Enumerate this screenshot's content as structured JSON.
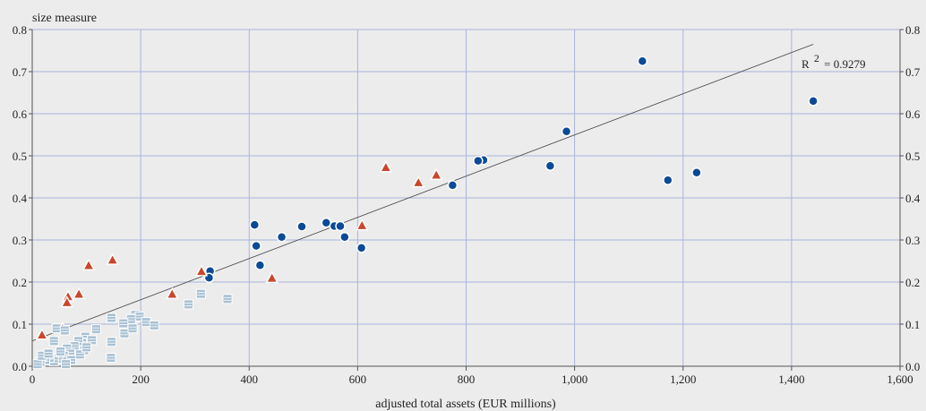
{
  "chart_data": {
    "type": "scatter",
    "title": "",
    "xlabel": "adjusted total assets (EUR millions)",
    "ylabel": "size measure",
    "xlim": [
      0,
      1600
    ],
    "ylim": [
      0,
      0.8
    ],
    "x_ticks": [
      0,
      200,
      400,
      600,
      800,
      1000,
      1200,
      1400,
      1600
    ],
    "x_tick_labels": [
      "0",
      "200",
      "400",
      "600",
      "800",
      "1,000",
      "1,200",
      "1,400",
      "1,600"
    ],
    "y_ticks": [
      0,
      0.1,
      0.2,
      0.3,
      0.4,
      0.5,
      0.6,
      0.7,
      0.8
    ],
    "y_tick_labels": [
      "0.0",
      "0.1",
      "0.2",
      "0.3",
      "0.4",
      "0.5",
      "0.6",
      "0.7",
      "0.8"
    ],
    "grid": true,
    "right_axis_mirror": true,
    "annotation": {
      "text_base": "R",
      "text_sup": "2",
      "text_value": "= 0.9279"
    },
    "trendline": {
      "x": [
        0,
        1440
      ],
      "y": [
        0.06,
        0.765
      ]
    },
    "series": [
      {
        "marker": "circle",
        "color": "#0b4a96",
        "points": [
          [
            1125,
            0.725
          ],
          [
            1440,
            0.63
          ],
          [
            985,
            0.558
          ],
          [
            832,
            0.49
          ],
          [
            822,
            0.488
          ],
          [
            955,
            0.476
          ],
          [
            1172,
            0.442
          ],
          [
            1225,
            0.46
          ],
          [
            775,
            0.43
          ],
          [
            410,
            0.336
          ],
          [
            542,
            0.341
          ],
          [
            557,
            0.333
          ],
          [
            568,
            0.333
          ],
          [
            497,
            0.332
          ],
          [
            460,
            0.307
          ],
          [
            576,
            0.307
          ],
          [
            413,
            0.286
          ],
          [
            607,
            0.281
          ],
          [
            420,
            0.24
          ],
          [
            328,
            0.226
          ],
          [
            326,
            0.21
          ]
        ]
      },
      {
        "marker": "triangle",
        "color": "#c9472b",
        "points": [
          [
            652,
            0.473
          ],
          [
            745,
            0.455
          ],
          [
            712,
            0.437
          ],
          [
            608,
            0.335
          ],
          [
            148,
            0.253
          ],
          [
            104,
            0.24
          ],
          [
            312,
            0.226
          ],
          [
            442,
            0.21
          ],
          [
            258,
            0.172
          ],
          [
            86,
            0.172
          ],
          [
            66,
            0.166
          ],
          [
            64,
            0.152
          ],
          [
            18,
            0.075
          ],
          [
            56,
            0.09
          ]
        ]
      },
      {
        "marker": "square",
        "color": "#a9c1d3",
        "points": [
          [
            360,
            0.16
          ],
          [
            311,
            0.172
          ],
          [
            288,
            0.147
          ],
          [
            190,
            0.122
          ],
          [
            198,
            0.118
          ],
          [
            182,
            0.112
          ],
          [
            210,
            0.105
          ],
          [
            225,
            0.097
          ],
          [
            168,
            0.102
          ],
          [
            146,
            0.115
          ],
          [
            146,
            0.058
          ],
          [
            170,
            0.078
          ],
          [
            185,
            0.09
          ],
          [
            118,
            0.088
          ],
          [
            98,
            0.07
          ],
          [
            110,
            0.062
          ],
          [
            92,
            0.055
          ],
          [
            85,
            0.06
          ],
          [
            78,
            0.048
          ],
          [
            96,
            0.038
          ],
          [
            64,
            0.042
          ],
          [
            70,
            0.03
          ],
          [
            58,
            0.025
          ],
          [
            48,
            0.018
          ],
          [
            40,
            0.012
          ],
          [
            32,
            0.02
          ],
          [
            24,
            0.015
          ],
          [
            15,
            0.01
          ],
          [
            10,
            0.005
          ],
          [
            18,
            0.025
          ],
          [
            45,
            0.09
          ],
          [
            60,
            0.085
          ],
          [
            40,
            0.06
          ],
          [
            52,
            0.035
          ],
          [
            72,
            0.015
          ],
          [
            145,
            0.02
          ],
          [
            30,
            0.03
          ],
          [
            88,
            0.028
          ],
          [
            62,
            0.005
          ],
          [
            100,
            0.045
          ]
        ]
      }
    ]
  }
}
